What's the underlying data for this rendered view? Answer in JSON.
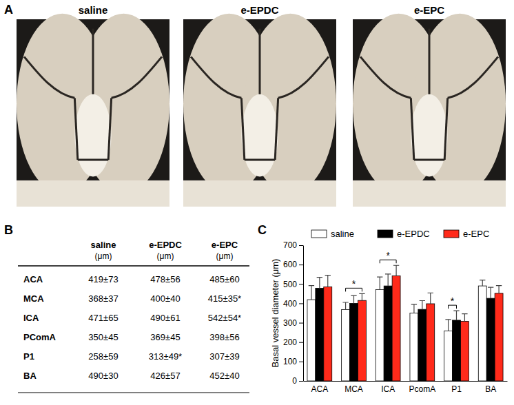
{
  "panel_labels": [
    "A",
    "B",
    "C"
  ],
  "photos": [
    "saline",
    "e-EPDC",
    "e-EPC"
  ],
  "table": {
    "header": [
      {
        "name": "saline",
        "unit": "(μm)"
      },
      {
        "name": "e-EPDC",
        "unit": "(μm)"
      },
      {
        "name": "e-EPC",
        "unit": "(μm)"
      }
    ],
    "rows": [
      {
        "label": "ACA",
        "cells": [
          "419±73",
          "478±56",
          "485±60"
        ]
      },
      {
        "label": "MCA",
        "cells": [
          "368±37",
          "400±40",
          "415±35*"
        ]
      },
      {
        "label": "ICA",
        "cells": [
          "471±65",
          "490±61",
          "542±54*"
        ]
      },
      {
        "label": "PComA",
        "cells": [
          "350±45",
          "369±45",
          "398±56"
        ]
      },
      {
        "label": "P1",
        "cells": [
          "258±59",
          "313±49*",
          "307±39"
        ]
      },
      {
        "label": "BA",
        "cells": [
          "490±30",
          "426±57",
          "452±40"
        ]
      }
    ]
  },
  "chart_data": {
    "type": "bar",
    "ylabel": "Basal vessel diameter (μm)",
    "categories": [
      "ACA",
      "MCA",
      "ICA",
      "PcomA",
      "P1",
      "BA"
    ],
    "series": [
      {
        "name": "saline",
        "color": "#ffffff",
        "values": [
          419,
          368,
          471,
          350,
          258,
          490
        ],
        "errors": [
          73,
          37,
          65,
          45,
          59,
          30
        ]
      },
      {
        "name": "e-EPDC",
        "color": "#000000",
        "values": [
          478,
          400,
          490,
          369,
          313,
          426
        ],
        "errors": [
          56,
          40,
          61,
          45,
          49,
          57
        ]
      },
      {
        "name": "e-EPC",
        "color": "#ff2a1a",
        "values": [
          485,
          415,
          542,
          398,
          307,
          452
        ],
        "errors": [
          60,
          35,
          54,
          56,
          39,
          40
        ]
      }
    ],
    "ylim": [
      0,
      700
    ],
    "yticks": [
      0,
      100,
      200,
      300,
      400,
      500,
      600,
      700
    ],
    "grid": false,
    "legend": "top",
    "annotations": [
      {
        "text": "*",
        "category": 1,
        "from": 0,
        "to": 2
      },
      {
        "text": "*",
        "category": 2,
        "from": 0,
        "to": 2
      },
      {
        "text": "*",
        "category": 4,
        "from": 0,
        "to": 1
      }
    ]
  }
}
